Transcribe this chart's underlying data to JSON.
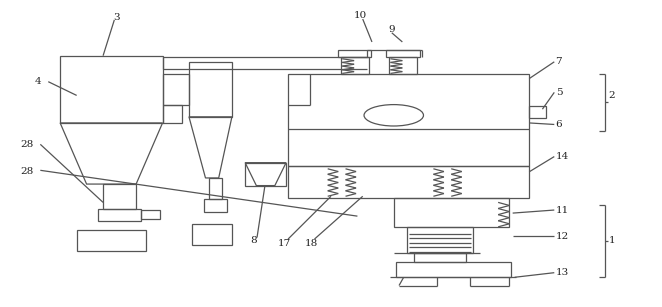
{
  "bg_color": "#ffffff",
  "line_color": "#555555",
  "line_width": 0.9,
  "label_color": "#222222",
  "figsize": [
    6.62,
    3.07
  ],
  "dpi": 100
}
